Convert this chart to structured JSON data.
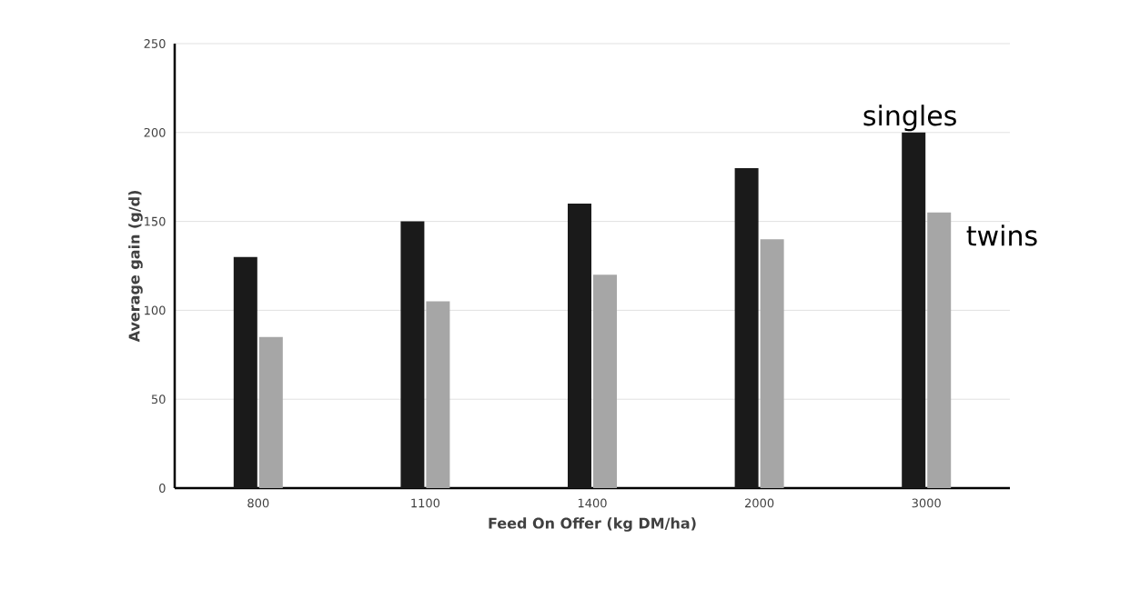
{
  "chart_data": {
    "type": "bar",
    "xlabel": "Feed On Offer (kg DM/ha)",
    "ylabel": "Average gain (g/d)",
    "categories": [
      "800",
      "1100",
      "1400",
      "2000",
      "3000"
    ],
    "series": [
      {
        "name": "singles",
        "color": "#1a1a1a",
        "values": [
          130,
          150,
          160,
          180,
          200
        ]
      },
      {
        "name": "twins",
        "color": "#a6a6a6",
        "values": [
          85,
          105,
          120,
          140,
          155
        ]
      }
    ],
    "ylim": [
      0,
      250
    ],
    "yticks": [
      0,
      50,
      100,
      150,
      200,
      250
    ],
    "grid": "y"
  }
}
